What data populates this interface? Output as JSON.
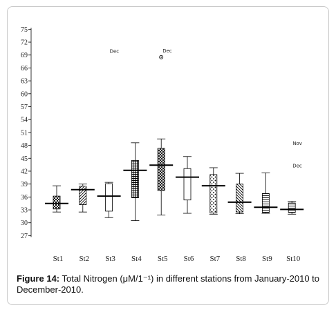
{
  "caption": {
    "label": "Figure 14:",
    "text": "Total Nitrogen (μM/1⁻¹) in different stations from January-2010 to December-2010."
  },
  "chart_data": {
    "type": "boxplot",
    "title": "",
    "xlabel": "",
    "ylabel": "",
    "ylim": [
      24.5,
      76.5
    ],
    "yticks": [
      27,
      30,
      33,
      36,
      39,
      42,
      45,
      48,
      51,
      54,
      57,
      60,
      63,
      66,
      69,
      72,
      75
    ],
    "categories": [
      "St1",
      "St2",
      "St3",
      "St4",
      "St5",
      "St6",
      "St7",
      "St8",
      "St9",
      "St10"
    ],
    "boxes": [
      {
        "station": "St1",
        "min": 32.5,
        "q1": 33.2,
        "median": 34.5,
        "q3": 36.2,
        "max": 38.6,
        "pattern": "checker"
      },
      {
        "station": "St2",
        "min": 32.5,
        "q1": 34.2,
        "median": 37.7,
        "q3": 38.5,
        "max": 39.0,
        "pattern": "diagonal"
      },
      {
        "station": "St3",
        "min": 31.2,
        "q1": 32.7,
        "median": 36.2,
        "q3": 39.1,
        "max": 39.4,
        "pattern": "plain"
      },
      {
        "station": "St4",
        "min": 30.5,
        "q1": 35.8,
        "median": 42.2,
        "q3": 44.5,
        "max": 48.6,
        "pattern": "grid"
      },
      {
        "station": "St5",
        "min": 31.8,
        "q1": 37.5,
        "median": 43.4,
        "q3": 47.3,
        "max": 49.5,
        "pattern": "crosshatch"
      },
      {
        "station": "St6",
        "min": 32.2,
        "q1": 35.3,
        "median": 40.6,
        "q3": 42.6,
        "max": 45.4,
        "pattern": "plain"
      },
      {
        "station": "St7",
        "min": 32.0,
        "q1": 32.3,
        "median": 38.6,
        "q3": 41.2,
        "max": 42.8,
        "pattern": "dots"
      },
      {
        "station": "St8",
        "min": 32.1,
        "q1": 32.5,
        "median": 34.8,
        "q3": 39.0,
        "max": 41.5,
        "pattern": "diagonal-back"
      },
      {
        "station": "St9",
        "min": 32.2,
        "q1": 32.4,
        "median": 33.6,
        "q3": 36.8,
        "max": 41.6,
        "pattern": "horizontal"
      },
      {
        "station": "St10",
        "min": 32.0,
        "q1": 32.4,
        "median": 33.1,
        "q3": 34.6,
        "max": 35.0,
        "pattern": "horizontal"
      }
    ],
    "outliers": [
      {
        "station": "St5",
        "value": 68.5,
        "label": "Dec"
      }
    ],
    "annotations": [
      {
        "station": "St3",
        "value": 69.9,
        "label": "Dec"
      },
      {
        "station": "St10",
        "value": 48.5,
        "label": "Nov"
      },
      {
        "station": "St10",
        "value": 43.3,
        "label": "Dec"
      }
    ],
    "grid": false,
    "legend": "none"
  }
}
